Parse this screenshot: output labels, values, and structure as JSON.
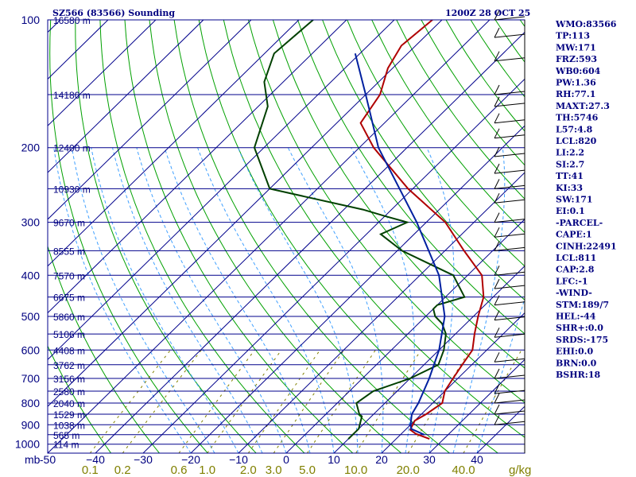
{
  "chart_data": {
    "type": "skew-t",
    "title": "SZ566 (83566) Sounding",
    "valid_time": "1200Z 28 OCT 25",
    "pressure_unit": "mb",
    "mixing_ratio_unit": "g/kg",
    "pressure_ticks": [
      100,
      200,
      300,
      400,
      500,
      600,
      700,
      800,
      900,
      1000
    ],
    "temperature_ticks": [
      -50,
      -40,
      -30,
      -20,
      -10,
      0,
      10,
      20,
      30,
      40
    ],
    "temperature_tick_labels": [
      "-50",
      "−40",
      "−30",
      "−20",
      "−10",
      "0",
      "10",
      "20",
      "30",
      "40"
    ],
    "mixing_ratio_labels": [
      {
        "label": "0.1",
        "value": 0.1
      },
      {
        "label": "0.2",
        "value": 0.2
      },
      {
        "label": "0.6",
        "value": 0.6
      },
      {
        "label": "1.0",
        "value": 1.0
      },
      {
        "label": "2.0",
        "value": 2.0
      },
      {
        "label": "3.0",
        "value": 3.0
      },
      {
        "label": "5.0",
        "value": 5.0
      },
      {
        "label": "10.0",
        "value": 10.0
      },
      {
        "label": "20.0",
        "value": 20.0
      },
      {
        "label": "40.0",
        "value": 40.0
      }
    ],
    "heights": [
      {
        "p": 100,
        "label": "16580 m"
      },
      {
        "p": 150,
        "label": "14180 m"
      },
      {
        "p": 200,
        "label": "12400 m"
      },
      {
        "p": 250,
        "label": "10930 m"
      },
      {
        "p": 300,
        "label": "9670 m"
      },
      {
        "p": 350,
        "label": "8555 m"
      },
      {
        "p": 400,
        "label": "7570 m"
      },
      {
        "p": 450,
        "label": "6675 m"
      },
      {
        "p": 500,
        "label": "5860 m"
      },
      {
        "p": 550,
        "label": "5106 m"
      },
      {
        "p": 600,
        "label": "4408 m"
      },
      {
        "p": 650,
        "label": "3762 m"
      },
      {
        "p": 700,
        "label": "3156 m"
      },
      {
        "p": 750,
        "label": "2580 m"
      },
      {
        "p": 800,
        "label": "2040 m"
      },
      {
        "p": 850,
        "label": "1529 m"
      },
      {
        "p": 900,
        "label": "1038 m"
      },
      {
        "p": 950,
        "label": "565 m"
      },
      {
        "p": 1000,
        "label": "114 m"
      }
    ],
    "temperature": [
      [
        972,
        27
      ],
      [
        945,
        23
      ],
      [
        925,
        21
      ],
      [
        880,
        20
      ],
      [
        850,
        21
      ],
      [
        800,
        22
      ],
      [
        750,
        20
      ],
      [
        700,
        19
      ],
      [
        650,
        18
      ],
      [
        600,
        17
      ],
      [
        550,
        14
      ],
      [
        500,
        11
      ],
      [
        450,
        8
      ],
      [
        400,
        3
      ],
      [
        350,
        -6
      ],
      [
        300,
        -16
      ],
      [
        250,
        -31
      ],
      [
        200,
        -47
      ],
      [
        175,
        -55
      ],
      [
        150,
        -57
      ],
      [
        130,
        -61
      ],
      [
        115,
        -63
      ],
      [
        100,
        -62
      ]
    ],
    "dewpoint": [
      [
        972,
        10
      ],
      [
        920,
        10
      ],
      [
        860,
        8
      ],
      [
        850,
        7
      ],
      [
        800,
        4
      ],
      [
        750,
        5
      ],
      [
        700,
        10
      ],
      [
        650,
        13
      ],
      [
        600,
        11
      ],
      [
        550,
        8
      ],
      [
        520,
        5
      ],
      [
        500,
        2
      ],
      [
        480,
        0
      ],
      [
        470,
        0
      ],
      [
        450,
        4
      ],
      [
        400,
        -3
      ],
      [
        350,
        -19
      ],
      [
        320,
        -27
      ],
      [
        300,
        -24
      ],
      [
        290,
        -30
      ],
      [
        280,
        -36
      ],
      [
        250,
        -60
      ],
      [
        200,
        -72
      ],
      [
        160,
        -78
      ],
      [
        140,
        -84
      ],
      [
        120,
        -88
      ],
      [
        100,
        -87
      ]
    ],
    "parcel": [
      [
        950,
        25
      ],
      [
        920,
        21
      ],
      [
        900,
        20
      ],
      [
        850,
        18
      ],
      [
        800,
        17
      ],
      [
        700,
        14
      ],
      [
        600,
        10
      ],
      [
        500,
        4
      ],
      [
        400,
        -6
      ],
      [
        300,
        -22
      ],
      [
        200,
        -46
      ],
      [
        150,
        -60
      ],
      [
        120,
        -71
      ]
    ],
    "stats": [
      "WMO:83566",
      "TP:113",
      "MW:171",
      "FRZ:593",
      "WB0:604",
      "PW:1.36",
      "RH:77.1",
      "MAXT:27.3",
      "TH:5746",
      "L57:4.8",
      "LCL:820",
      "LI:2.2",
      "SI:2.7",
      "TT:41",
      "KI:33",
      "SW:171",
      "EI:0.1",
      "-PARCEL-",
      "CAPE:1",
      "CINH:22491",
      "LCL:811",
      "CAP:2.8",
      "LFC:-1",
      "-WIND-",
      "STM:189/7",
      "HEL:-44",
      "SHR+:0.0",
      "SRDS:-175",
      "EHI:0.0",
      "BRN:0.0",
      "BSHR:18"
    ],
    "colors": {
      "isobar": "#00008b",
      "isotherm": "#00008b",
      "dry_adiabat": "#00a000",
      "moist_adiabat": "#40a0ff",
      "mixing_ratio": "#808000",
      "temperature": "#b00000",
      "dewpoint": "#004000",
      "parcel": "#0020a0"
    }
  }
}
